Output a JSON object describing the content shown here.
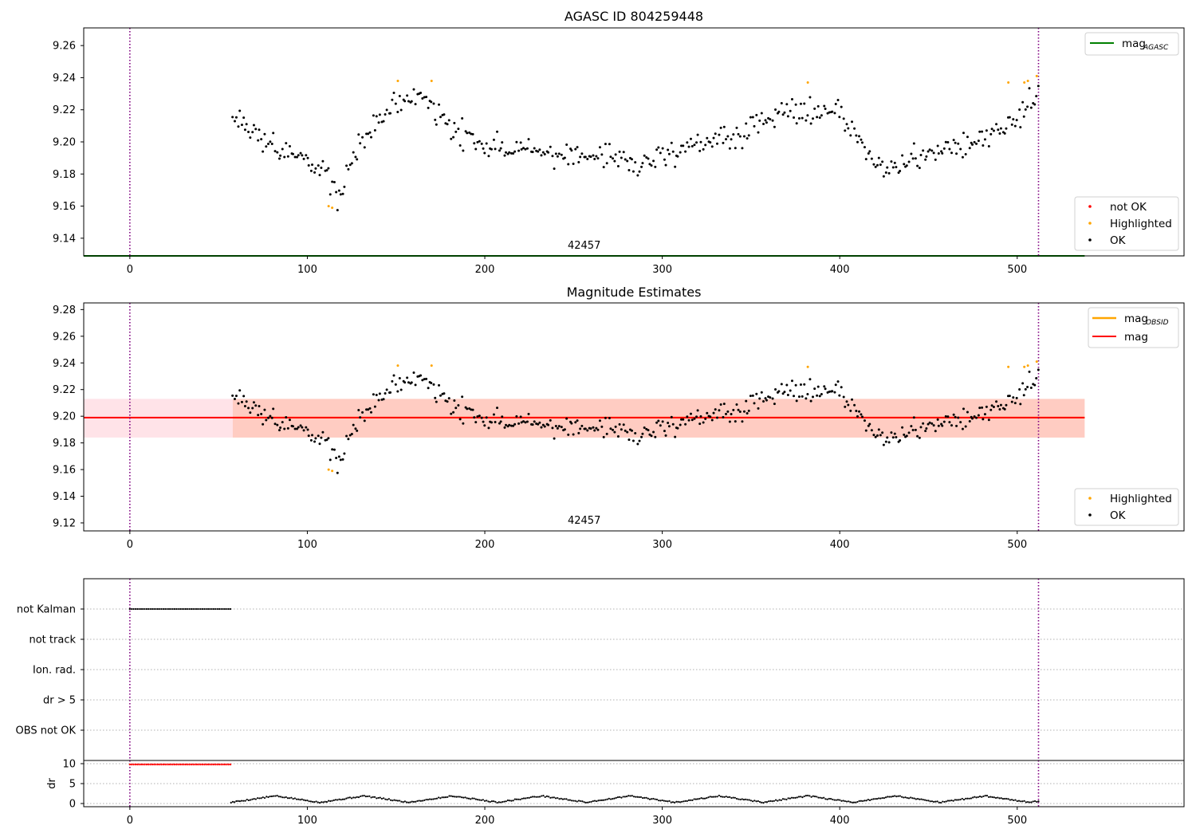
{
  "figure": {
    "background": "#ffffff"
  },
  "colors": {
    "ok": "#000000",
    "highlighted": "#ffa500",
    "not_ok": "#ff0000",
    "mag_agasc": "#008000",
    "mag_obsid": "#ffa500",
    "mag": "#ff0000",
    "band_outer": "#ffc0cb",
    "band_inner": "#ffa07a",
    "marker_line": "#800080"
  },
  "chart_data": [
    {
      "type": "scatter",
      "title": "AGASC ID 804259448",
      "xlim": [
        -26,
        594
      ],
      "ylim": [
        9.129,
        9.271
      ],
      "xticks": [
        0,
        100,
        200,
        300,
        400,
        500
      ],
      "yticks": [
        9.14,
        9.16,
        9.18,
        9.2,
        9.22,
        9.24,
        9.26
      ],
      "ytick_labels": [
        "9.14",
        "9.16",
        "9.18",
        "9.20",
        "9.22",
        "9.24",
        "9.26"
      ],
      "obsid_label": "42457",
      "obsid_label_x": 256,
      "vlines": [
        0,
        512
      ],
      "hlines": [
        {
          "name": "mag_agasc",
          "y": 9.129,
          "x_range": [
            -26,
            538
          ]
        }
      ],
      "series": [
        {
          "name": "OK",
          "seed": 11,
          "x_range": [
            58,
            512
          ]
        },
        {
          "name": "Highlighted",
          "x": [
            112,
            114,
            151,
            170,
            382,
            495,
            504,
            506,
            511
          ],
          "y": [
            9.16,
            9.159,
            9.238,
            9.238,
            9.237,
            9.237,
            9.237,
            9.238,
            9.241
          ]
        },
        {
          "name": "not OK",
          "x": [],
          "y": []
        }
      ],
      "legend_lines": [
        {
          "label": "mag",
          "sub": "AGASC",
          "color_key": "mag_agasc"
        }
      ],
      "legend_points": [
        {
          "label": "not OK",
          "color_key": "not_ok"
        },
        {
          "label": "Highlighted",
          "color_key": "highlighted"
        },
        {
          "label": "OK",
          "color_key": "ok"
        }
      ]
    },
    {
      "type": "scatter",
      "title": "Magnitude Estimates",
      "xlim": [
        -26,
        594
      ],
      "ylim": [
        9.114,
        9.285
      ],
      "xticks": [
        0,
        100,
        200,
        300,
        400,
        500
      ],
      "yticks": [
        9.12,
        9.14,
        9.16,
        9.18,
        9.2,
        9.22,
        9.24,
        9.26,
        9.28
      ],
      "ytick_labels": [
        "9.12",
        "9.14",
        "9.16",
        "9.18",
        "9.20",
        "9.22",
        "9.24",
        "9.26",
        "9.28"
      ],
      "obsid_label": "42457",
      "obsid_label_x": 256,
      "vlines": [
        0,
        512
      ],
      "bands": [
        {
          "color_key": "band_outer",
          "opacity": 0.45,
          "x_range": [
            -26,
            538
          ],
          "y_range": [
            9.184,
            9.213
          ]
        },
        {
          "color_key": "band_inner",
          "opacity": 0.35,
          "x_range": [
            58,
            538
          ],
          "y_range": [
            9.184,
            9.213
          ]
        }
      ],
      "hlines": [
        {
          "name": "mag_obsid",
          "y": 9.199,
          "x_range": [
            58,
            538
          ]
        },
        {
          "name": "mag",
          "y": 9.199,
          "x_range": [
            -26,
            538
          ]
        }
      ],
      "series": [
        {
          "name": "OK",
          "seed": 11,
          "x_range": [
            58,
            512
          ]
        },
        {
          "name": "Highlighted",
          "x": [
            112,
            114,
            151,
            170,
            382,
            495,
            504,
            506,
            511
          ],
          "y": [
            9.16,
            9.159,
            9.238,
            9.238,
            9.237,
            9.237,
            9.237,
            9.238,
            9.241
          ]
        }
      ],
      "legend_lines": [
        {
          "label": "mag",
          "sub": "OBSID",
          "color_key": "mag_obsid"
        },
        {
          "label": "mag",
          "sub": "",
          "color_key": "mag"
        }
      ],
      "legend_points": [
        {
          "label": "Highlighted",
          "color_key": "highlighted"
        },
        {
          "label": "OK",
          "color_key": "ok"
        }
      ]
    },
    {
      "type": "scatter",
      "title": "",
      "xlim": [
        -26,
        594
      ],
      "flag_labels": [
        "not Kalman",
        "not track",
        "Ion. rad.",
        "dr > 5",
        "OBS not OK"
      ],
      "flags": [
        {
          "label": "not Kalman",
          "x_range": [
            0,
            57
          ],
          "step": 1.05
        },
        {
          "label": "not track",
          "x_range": [],
          "step": 1
        },
        {
          "label": "Ion. rad.",
          "x_range": [],
          "step": 1
        },
        {
          "label": "dr > 5",
          "x_range": [],
          "step": 1
        },
        {
          "label": "OBS not OK",
          "x_range": [],
          "step": 1
        }
      ],
      "vlines": [
        0,
        512
      ]
    },
    {
      "type": "scatter",
      "xlim": [
        -26,
        594
      ],
      "ylim": [
        -0.8,
        10.8
      ],
      "ylabel": "dr",
      "xticks": [
        0,
        100,
        200,
        300,
        400,
        500
      ],
      "yticks": [
        0,
        5,
        10
      ],
      "ytick_labels": [
        "0",
        "5",
        "10"
      ],
      "vlines": [
        0,
        512
      ],
      "series": [
        {
          "name": "clipped",
          "x_range": [
            0,
            57
          ],
          "value": 9.8
        },
        {
          "name": "dr",
          "x_range": [
            57,
            512
          ],
          "y_range": [
            0,
            2.3
          ]
        }
      ]
    }
  ]
}
